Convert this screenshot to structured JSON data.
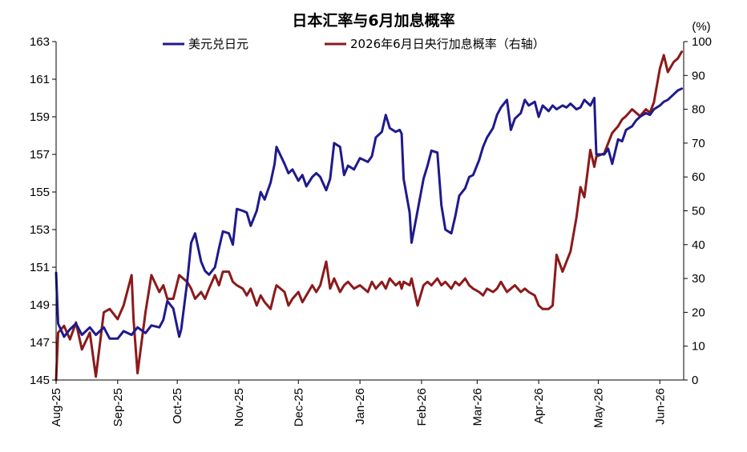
{
  "chart_data": {
    "type": "line",
    "title": "日本汇率与6月加息概率",
    "right_unit": "(%)",
    "colors": {
      "usd_jpy": "#1F1A8C",
      "boj_prob": "#8B1A1A"
    },
    "left_axis": {
      "range": [
        145,
        163
      ],
      "ticks": [
        "145",
        "147",
        "149",
        "151",
        "153",
        "155",
        "157",
        "159",
        "161",
        "163"
      ]
    },
    "right_axis": {
      "range": [
        0,
        100
      ],
      "ticks": [
        "0",
        "10",
        "20",
        "30",
        "40",
        "50",
        "60",
        "70",
        "80",
        "90",
        "100"
      ]
    },
    "x_axis": {
      "range": [
        "2025-08-01",
        "2026-06-13"
      ],
      "tick_dates": [
        "2025-08-01",
        "2025-09-01",
        "2025-10-01",
        "2025-11-01",
        "2025-12-01",
        "2026-01-01",
        "2026-02-01",
        "2026-03-01",
        "2026-04-01",
        "2026-05-01",
        "2026-06-01"
      ],
      "tick_labels": [
        "Aug-25",
        "Sep-25",
        "Oct-25",
        "Nov-25",
        "Dec-25",
        "Jan-26",
        "Feb-26",
        "Mar-26",
        "Apr-26",
        "May-26",
        "Jun-26"
      ]
    },
    "legend": {
      "placement": "top-center"
    },
    "grid": false,
    "series": [
      {
        "name": "美元兑日元",
        "axis": "left",
        "points": [
          [
            "2025-08-01",
            150.7
          ],
          [
            "2025-08-02",
            148.0
          ],
          [
            "2025-08-05",
            147.3
          ],
          [
            "2025-08-08",
            147.7
          ],
          [
            "2025-08-11",
            148.0
          ],
          [
            "2025-08-14",
            147.4
          ],
          [
            "2025-08-18",
            147.8
          ],
          [
            "2025-08-21",
            147.4
          ],
          [
            "2025-08-25",
            147.8
          ],
          [
            "2025-08-28",
            147.2
          ],
          [
            "2025-09-01",
            147.2
          ],
          [
            "2025-09-04",
            147.6
          ],
          [
            "2025-09-08",
            147.4
          ],
          [
            "2025-09-11",
            147.8
          ],
          [
            "2025-09-15",
            147.5
          ],
          [
            "2025-09-18",
            147.9
          ],
          [
            "2025-09-22",
            147.8
          ],
          [
            "2025-09-24",
            148.2
          ],
          [
            "2025-09-26",
            149.2
          ],
          [
            "2025-09-29",
            148.8
          ],
          [
            "2025-10-02",
            147.3
          ],
          [
            "2025-10-03",
            147.7
          ],
          [
            "2025-10-06",
            150.2
          ],
          [
            "2025-10-08",
            152.3
          ],
          [
            "2025-10-10",
            152.8
          ],
          [
            "2025-10-13",
            151.3
          ],
          [
            "2025-10-15",
            150.8
          ],
          [
            "2025-10-17",
            150.6
          ],
          [
            "2025-10-20",
            151.0
          ],
          [
            "2025-10-22",
            152.0
          ],
          [
            "2025-10-24",
            152.9
          ],
          [
            "2025-10-27",
            152.8
          ],
          [
            "2025-10-29",
            152.2
          ],
          [
            "2025-10-31",
            154.1
          ],
          [
            "2025-11-03",
            154.0
          ],
          [
            "2025-11-05",
            153.9
          ],
          [
            "2025-11-07",
            153.2
          ],
          [
            "2025-11-10",
            154.0
          ],
          [
            "2025-11-12",
            155.0
          ],
          [
            "2025-11-14",
            154.6
          ],
          [
            "2025-11-17",
            155.5
          ],
          [
            "2025-11-19",
            156.5
          ],
          [
            "2025-11-20",
            157.4
          ],
          [
            "2025-11-24",
            156.5
          ],
          [
            "2025-11-26",
            156.0
          ],
          [
            "2025-11-28",
            156.2
          ],
          [
            "2025-12-01",
            155.6
          ],
          [
            "2025-12-03",
            155.9
          ],
          [
            "2025-12-05",
            155.3
          ],
          [
            "2025-12-08",
            155.8
          ],
          [
            "2025-12-10",
            156.0
          ],
          [
            "2025-12-12",
            155.8
          ],
          [
            "2025-12-15",
            155.1
          ],
          [
            "2025-12-17",
            155.7
          ],
          [
            "2025-12-19",
            157.6
          ],
          [
            "2025-12-22",
            157.4
          ],
          [
            "2025-12-24",
            155.9
          ],
          [
            "2025-12-26",
            156.4
          ],
          [
            "2025-12-29",
            156.2
          ],
          [
            "2026-01-01",
            156.8
          ],
          [
            "2026-01-05",
            156.6
          ],
          [
            "2026-01-07",
            156.9
          ],
          [
            "2026-01-09",
            157.9
          ],
          [
            "2026-01-12",
            158.2
          ],
          [
            "2026-01-14",
            159.1
          ],
          [
            "2026-01-16",
            158.4
          ],
          [
            "2026-01-19",
            158.2
          ],
          [
            "2026-01-21",
            158.3
          ],
          [
            "2026-01-22",
            158.1
          ],
          [
            "2026-01-23",
            155.7
          ],
          [
            "2026-01-26",
            153.9
          ],
          [
            "2026-01-27",
            152.3
          ],
          [
            "2026-01-30",
            154.0
          ],
          [
            "2026-02-02",
            155.7
          ],
          [
            "2026-02-04",
            156.4
          ],
          [
            "2026-02-06",
            157.2
          ],
          [
            "2026-02-09",
            157.1
          ],
          [
            "2026-02-11",
            154.3
          ],
          [
            "2026-02-13",
            153.0
          ],
          [
            "2026-02-16",
            152.8
          ],
          [
            "2026-02-18",
            153.7
          ],
          [
            "2026-02-20",
            154.8
          ],
          [
            "2026-02-23",
            155.2
          ],
          [
            "2026-02-25",
            155.8
          ],
          [
            "2026-02-27",
            155.9
          ],
          [
            "2026-03-02",
            156.7
          ],
          [
            "2026-03-04",
            157.4
          ],
          [
            "2026-03-06",
            157.9
          ],
          [
            "2026-03-09",
            158.4
          ],
          [
            "2026-03-11",
            159.1
          ],
          [
            "2026-03-13",
            159.5
          ],
          [
            "2026-03-16",
            159.9
          ],
          [
            "2026-03-18",
            158.3
          ],
          [
            "2026-03-20",
            158.9
          ],
          [
            "2026-03-23",
            159.2
          ],
          [
            "2026-03-25",
            159.9
          ],
          [
            "2026-03-27",
            159.6
          ],
          [
            "2026-03-30",
            159.8
          ],
          [
            "2026-04-01",
            159.0
          ],
          [
            "2026-04-03",
            159.6
          ],
          [
            "2026-04-06",
            159.3
          ],
          [
            "2026-04-08",
            159.6
          ],
          [
            "2026-04-10",
            159.4
          ],
          [
            "2026-04-13",
            159.6
          ],
          [
            "2026-04-15",
            159.5
          ],
          [
            "2026-04-17",
            159.7
          ],
          [
            "2026-04-20",
            159.4
          ],
          [
            "2026-04-22",
            159.5
          ],
          [
            "2026-04-24",
            159.9
          ],
          [
            "2026-04-27",
            159.6
          ],
          [
            "2026-04-29",
            160.0
          ],
          [
            "2026-04-30",
            157.0
          ],
          [
            "2026-05-04",
            157.0
          ],
          [
            "2026-05-06",
            157.3
          ],
          [
            "2026-05-08",
            156.5
          ],
          [
            "2026-05-11",
            157.8
          ],
          [
            "2026-05-13",
            157.7
          ],
          [
            "2026-05-15",
            158.3
          ],
          [
            "2026-05-18",
            158.5
          ],
          [
            "2026-05-20",
            158.8
          ],
          [
            "2026-05-22",
            159.0
          ],
          [
            "2026-05-25",
            159.2
          ],
          [
            "2026-05-27",
            159.1
          ],
          [
            "2026-05-29",
            159.4
          ],
          [
            "2026-06-01",
            159.6
          ],
          [
            "2026-06-03",
            159.8
          ],
          [
            "2026-06-05",
            159.9
          ],
          [
            "2026-06-08",
            160.2
          ],
          [
            "2026-06-10",
            160.4
          ],
          [
            "2026-06-12",
            160.5
          ]
        ]
      },
      {
        "name": "2026年6月日央行加息概率（右轴）",
        "axis": "right",
        "points": [
          [
            "2025-08-01",
            0.0
          ],
          [
            "2025-08-02",
            14.0
          ],
          [
            "2025-08-05",
            16.0
          ],
          [
            "2025-08-08",
            12.0
          ],
          [
            "2025-08-11",
            17.0
          ],
          [
            "2025-08-14",
            9.0
          ],
          [
            "2025-08-18",
            14.0
          ],
          [
            "2025-08-21",
            1.0
          ],
          [
            "2025-08-25",
            20.0
          ],
          [
            "2025-08-28",
            21.0
          ],
          [
            "2025-09-01",
            18.0
          ],
          [
            "2025-09-04",
            22.0
          ],
          [
            "2025-09-08",
            31.0
          ],
          [
            "2025-09-09",
            18.0
          ],
          [
            "2025-09-11",
            2.0
          ],
          [
            "2025-09-15",
            20.0
          ],
          [
            "2025-09-18",
            31.0
          ],
          [
            "2025-09-22",
            26.0
          ],
          [
            "2025-09-24",
            28.0
          ],
          [
            "2025-09-26",
            24.0
          ],
          [
            "2025-09-29",
            24.0
          ],
          [
            "2025-10-02",
            31.0
          ],
          [
            "2025-10-06",
            29.0
          ],
          [
            "2025-10-08",
            27.0
          ],
          [
            "2025-10-10",
            24.0
          ],
          [
            "2025-10-13",
            26.0
          ],
          [
            "2025-10-15",
            24.0
          ],
          [
            "2025-10-17",
            27.0
          ],
          [
            "2025-10-20",
            31.0
          ],
          [
            "2025-10-22",
            28.0
          ],
          [
            "2025-10-24",
            32.0
          ],
          [
            "2025-10-27",
            32.0
          ],
          [
            "2025-10-29",
            29.0
          ],
          [
            "2025-10-31",
            28.0
          ],
          [
            "2025-11-03",
            27.0
          ],
          [
            "2025-11-05",
            25.0
          ],
          [
            "2025-11-07",
            27.0
          ],
          [
            "2025-11-10",
            22.0
          ],
          [
            "2025-11-12",
            25.0
          ],
          [
            "2025-11-14",
            23.0
          ],
          [
            "2025-11-17",
            21.0
          ],
          [
            "2025-11-19",
            26.0
          ],
          [
            "2025-11-20",
            28.0
          ],
          [
            "2025-11-24",
            26.0
          ],
          [
            "2025-11-26",
            22.0
          ],
          [
            "2025-11-28",
            24.0
          ],
          [
            "2025-12-01",
            26.0
          ],
          [
            "2025-12-03",
            23.0
          ],
          [
            "2025-12-05",
            25.0
          ],
          [
            "2025-12-08",
            28.0
          ],
          [
            "2025-12-10",
            26.0
          ],
          [
            "2025-12-12",
            28.0
          ],
          [
            "2025-12-15",
            35.0
          ],
          [
            "2025-12-17",
            27.0
          ],
          [
            "2025-12-19",
            30.0
          ],
          [
            "2025-12-22",
            26.0
          ],
          [
            "2025-12-24",
            28.0
          ],
          [
            "2025-12-26",
            29.0
          ],
          [
            "2025-12-29",
            27.0
          ],
          [
            "2026-01-01",
            28.0
          ],
          [
            "2026-01-05",
            26.0
          ],
          [
            "2026-01-07",
            29.0
          ],
          [
            "2026-01-09",
            27.0
          ],
          [
            "2026-01-12",
            29.0
          ],
          [
            "2026-01-14",
            27.0
          ],
          [
            "2026-01-16",
            30.0
          ],
          [
            "2026-01-19",
            28.0
          ],
          [
            "2026-01-21",
            29.0
          ],
          [
            "2026-01-22",
            27.0
          ],
          [
            "2026-01-23",
            29.0
          ],
          [
            "2026-01-26",
            28.0
          ],
          [
            "2026-01-27",
            30.0
          ],
          [
            "2026-01-30",
            22.0
          ],
          [
            "2026-02-02",
            28.0
          ],
          [
            "2026-02-04",
            29.0
          ],
          [
            "2026-02-06",
            28.0
          ],
          [
            "2026-02-09",
            30.0
          ],
          [
            "2026-02-11",
            28.0
          ],
          [
            "2026-02-13",
            29.0
          ],
          [
            "2026-02-16",
            27.0
          ],
          [
            "2026-02-18",
            29.0
          ],
          [
            "2026-02-20",
            28.0
          ],
          [
            "2026-02-23",
            30.0
          ],
          [
            "2026-02-25",
            28.0
          ],
          [
            "2026-02-27",
            27.0
          ],
          [
            "2026-03-02",
            26.0
          ],
          [
            "2026-03-04",
            25.0
          ],
          [
            "2026-03-06",
            27.0
          ],
          [
            "2026-03-09",
            26.0
          ],
          [
            "2026-03-11",
            27.0
          ],
          [
            "2026-03-13",
            29.0
          ],
          [
            "2026-03-16",
            26.0
          ],
          [
            "2026-03-18",
            27.0
          ],
          [
            "2026-03-20",
            28.0
          ],
          [
            "2026-03-23",
            26.0
          ],
          [
            "2026-03-25",
            27.0
          ],
          [
            "2026-03-27",
            26.0
          ],
          [
            "2026-03-30",
            25.0
          ],
          [
            "2026-04-01",
            22.0
          ],
          [
            "2026-04-03",
            21.0
          ],
          [
            "2026-04-06",
            21.0
          ],
          [
            "2026-04-08",
            22.0
          ],
          [
            "2026-04-10",
            37.0
          ],
          [
            "2026-04-13",
            32.0
          ],
          [
            "2026-04-15",
            35.0
          ],
          [
            "2026-04-17",
            38.0
          ],
          [
            "2026-04-20",
            48.0
          ],
          [
            "2026-04-22",
            57.0
          ],
          [
            "2026-04-24",
            54.0
          ],
          [
            "2026-04-27",
            68.0
          ],
          [
            "2026-04-29",
            63.0
          ],
          [
            "2026-04-30",
            66.0
          ],
          [
            "2026-05-04",
            67.0
          ],
          [
            "2026-05-06",
            70.0
          ],
          [
            "2026-05-08",
            73.0
          ],
          [
            "2026-05-11",
            75.0
          ],
          [
            "2026-05-13",
            77.0
          ],
          [
            "2026-05-15",
            78.0
          ],
          [
            "2026-05-18",
            80.0
          ],
          [
            "2026-05-20",
            79.0
          ],
          [
            "2026-05-22",
            78.0
          ],
          [
            "2026-05-25",
            80.0
          ],
          [
            "2026-05-27",
            79.0
          ],
          [
            "2026-05-29",
            82.0
          ],
          [
            "2026-06-01",
            92.0
          ],
          [
            "2026-06-03",
            96.0
          ],
          [
            "2026-06-05",
            91.0
          ],
          [
            "2026-06-08",
            94.0
          ],
          [
            "2026-06-10",
            95.0
          ],
          [
            "2026-06-12",
            97.0
          ]
        ]
      }
    ]
  }
}
